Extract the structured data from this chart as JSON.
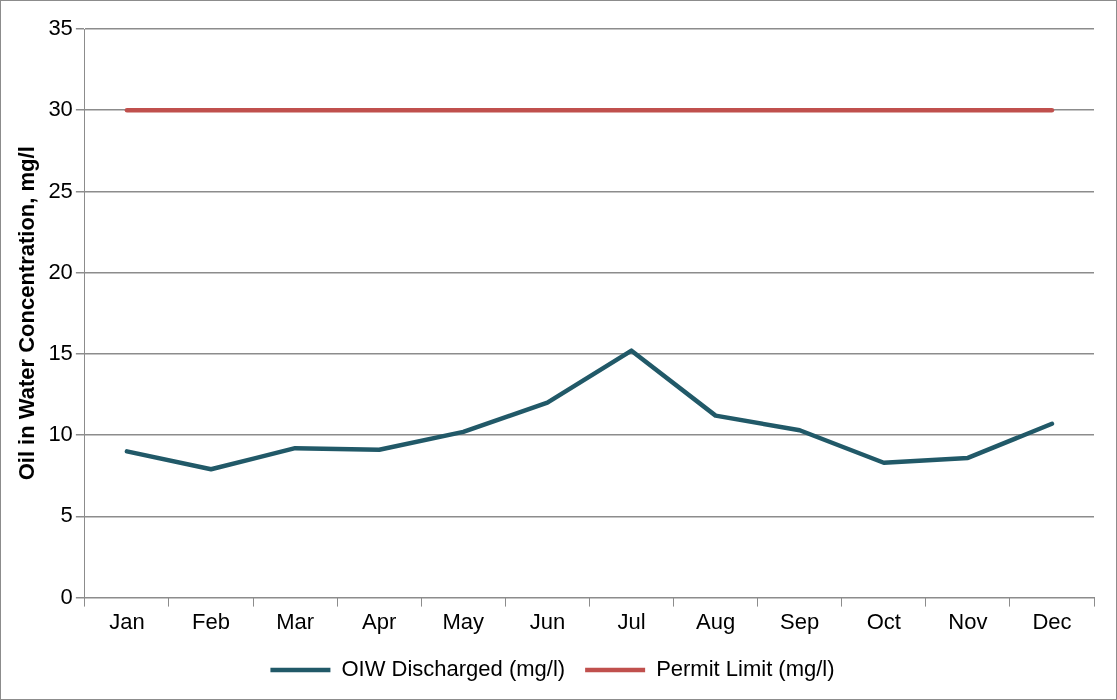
{
  "chart_data": {
    "type": "line",
    "ylabel": "Oil in Water Concentration, mg/l",
    "categories": [
      "Jan",
      "Feb",
      "Mar",
      "Apr",
      "May",
      "Jun",
      "Jul",
      "Aug",
      "Sep",
      "Oct",
      "Nov",
      "Dec"
    ],
    "series": [
      {
        "name": "OIW Discharged (mg/l)",
        "color": "#215968",
        "values": [
          9.0,
          7.9,
          9.2,
          9.1,
          10.2,
          12.0,
          15.2,
          11.2,
          10.3,
          8.3,
          8.6,
          10.7
        ]
      },
      {
        "name": "Permit Limit (mg/l)",
        "color": "#c0504d",
        "values": [
          30,
          30,
          30,
          30,
          30,
          30,
          30,
          30,
          30,
          30,
          30,
          30
        ]
      }
    ],
    "ylim": [
      0,
      35
    ],
    "yticks": [
      0,
      5,
      10,
      15,
      20,
      25,
      30,
      35
    ],
    "grid": "y",
    "legend": "bottom",
    "marker": "none",
    "line_style": "solid"
  }
}
